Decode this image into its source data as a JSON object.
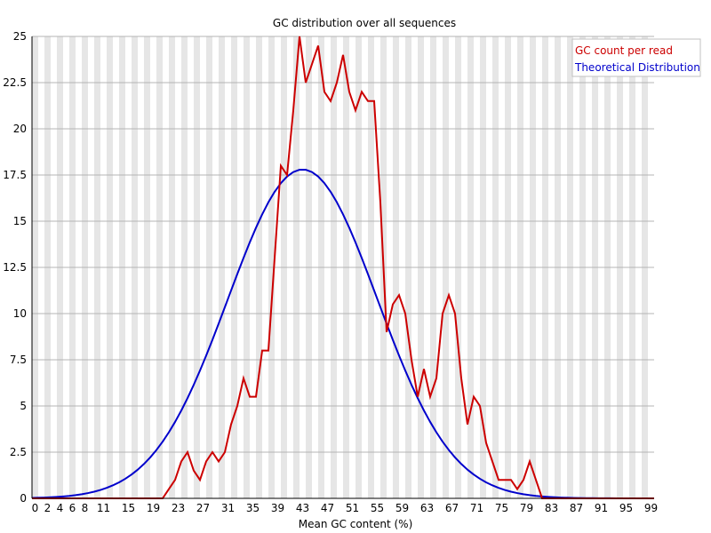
{
  "chart_data": {
    "type": "line",
    "title": "GC distribution over all sequences",
    "xlabel": "Mean GC content (%)",
    "ylabel": "",
    "xlim": [
      0,
      100
    ],
    "ylim": [
      0,
      25
    ],
    "y_ticks": [
      "0",
      "2.5",
      "5",
      "7.5",
      "10",
      "12.5",
      "15",
      "17.5",
      "20",
      "22.5",
      "25"
    ],
    "x_ticks": [
      "0",
      "2",
      "4",
      "6",
      "8",
      "11",
      "15",
      "19",
      "23",
      "27",
      "31",
      "35",
      "39",
      "43",
      "47",
      "51",
      "55",
      "59",
      "63",
      "67",
      "71",
      "75",
      "79",
      "83",
      "87",
      "91",
      "95",
      "99"
    ],
    "grid": true,
    "legend_position": "top-right",
    "series": [
      {
        "name": "GC count per read",
        "color": "#cc0000",
        "x": [
          0,
          1,
          2,
          3,
          4,
          5,
          6,
          7,
          8,
          9,
          10,
          11,
          12,
          13,
          14,
          15,
          16,
          17,
          18,
          19,
          20,
          21,
          22,
          23,
          24,
          25,
          26,
          27,
          28,
          29,
          30,
          31,
          32,
          33,
          34,
          35,
          36,
          37,
          38,
          39,
          40,
          41,
          42,
          43,
          44,
          45,
          46,
          47,
          48,
          49,
          50,
          51,
          52,
          53,
          54,
          55,
          56,
          57,
          58,
          59,
          60,
          61,
          62,
          63,
          64,
          65,
          66,
          67,
          68,
          69,
          70,
          71,
          72,
          73,
          74,
          75,
          76,
          77,
          78,
          79,
          80,
          81,
          82,
          83,
          84,
          85,
          86,
          87,
          88,
          89,
          90,
          91,
          92,
          93,
          94,
          95,
          96,
          97,
          98,
          99,
          100
        ],
        "y": [
          0,
          0,
          0,
          0,
          0,
          0,
          0,
          0,
          0,
          0,
          0,
          0,
          0,
          0,
          0,
          0,
          0,
          0,
          0,
          0,
          0,
          0,
          0.5,
          1,
          2,
          2.5,
          1.5,
          1,
          2,
          2.5,
          2,
          2.5,
          4,
          5,
          6.5,
          5.5,
          5.5,
          8,
          8,
          13,
          18,
          17.5,
          21,
          25,
          22.5,
          23.5,
          24.5,
          22,
          21.5,
          22.5,
          24,
          22,
          21,
          22,
          21.5,
          21.5,
          16,
          9,
          10.5,
          11,
          10,
          7.5,
          5.5,
          7,
          5.5,
          6.5,
          10,
          11,
          10,
          6.5,
          4,
          5.5,
          5,
          3,
          2,
          1,
          1,
          1,
          0.5,
          1,
          2,
          1,
          0,
          0,
          0,
          0,
          0,
          0,
          0,
          0,
          0,
          0,
          0,
          0,
          0,
          0,
          0,
          0,
          0,
          0,
          0
        ]
      },
      {
        "name": "Theoretical Distribution",
        "color": "#0000cc",
        "mean": 43.5,
        "sd": 12.0,
        "peak": 17.8
      }
    ]
  }
}
